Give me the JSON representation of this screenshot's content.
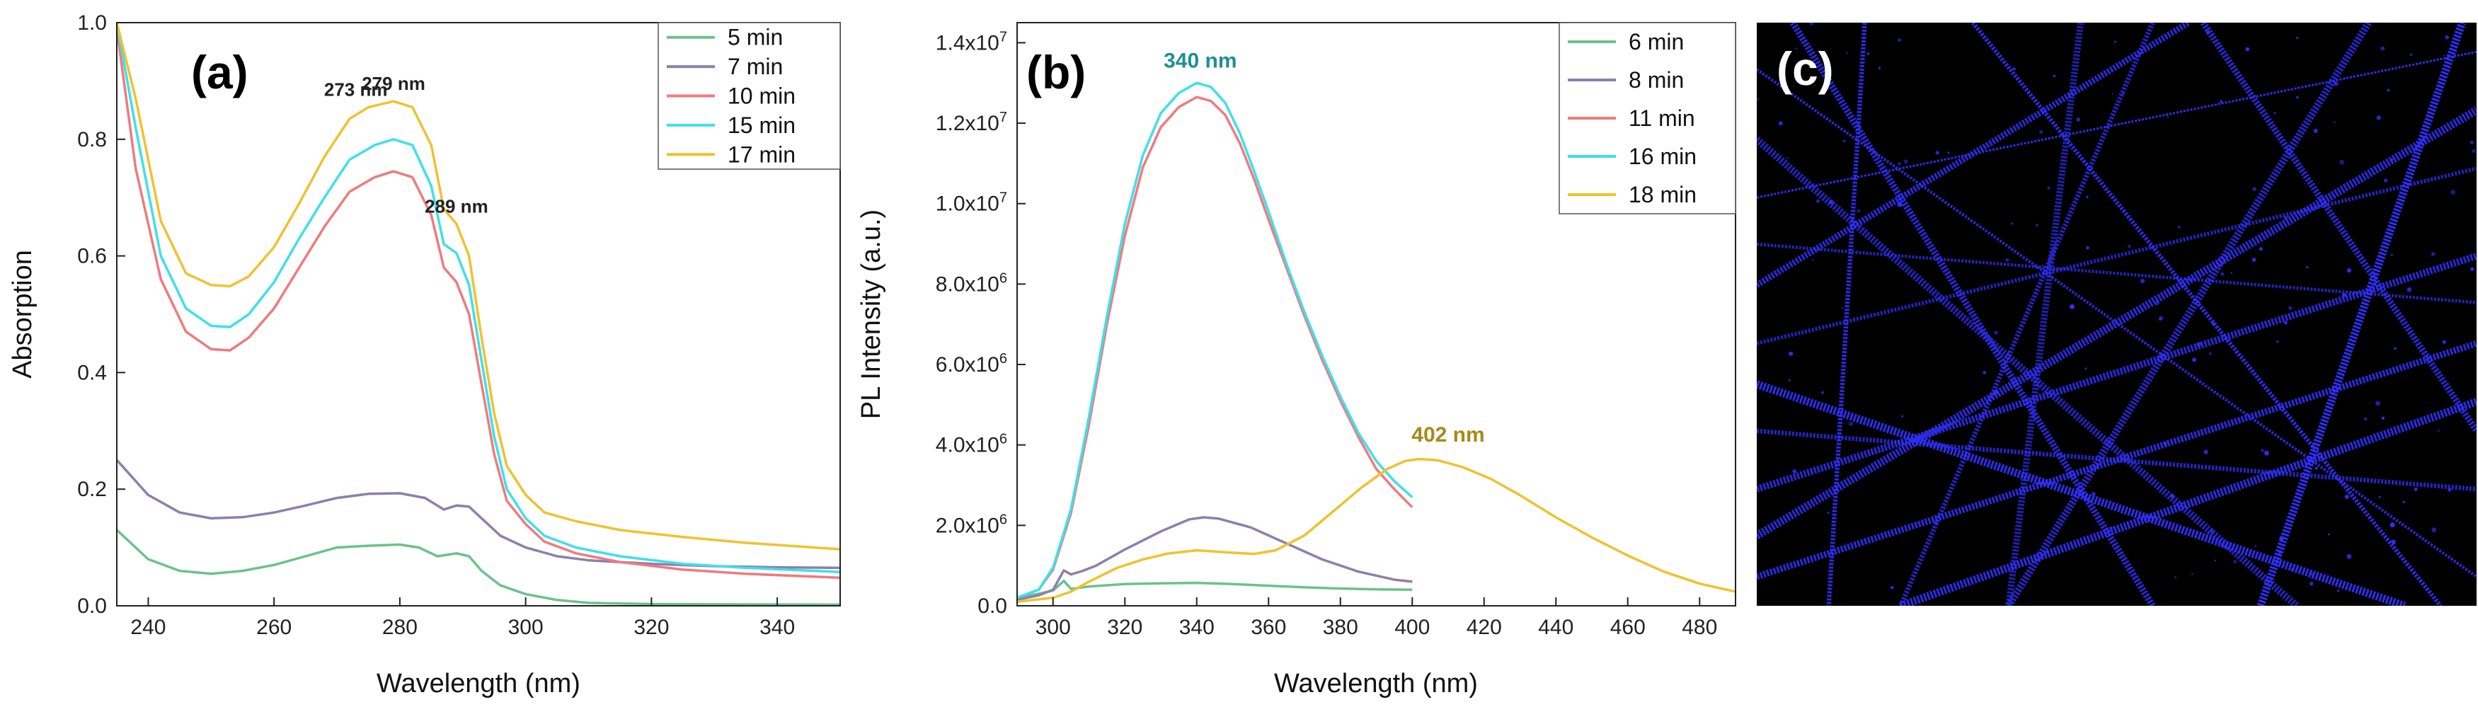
{
  "chart_data": [
    {
      "type": "line",
      "panel_label": "(a)",
      "xlabel": "Wavelength (nm)",
      "ylabel": "Absorption",
      "xlim": [
        235,
        350
      ],
      "ylim": [
        0,
        1.0
      ],
      "xticks": [
        240,
        260,
        280,
        300,
        320,
        340
      ],
      "yticks": [
        0.0,
        0.2,
        0.4,
        0.6,
        0.8,
        1.0
      ],
      "ytick_labels": [
        "0.0",
        "0.2",
        "0.4",
        "0.6",
        "0.8",
        "1.0"
      ],
      "legend_position": "top-right",
      "annotations": [
        {
          "text": "273 nm",
          "x": 273,
          "y": 0.855
        },
        {
          "text": "279 nm",
          "x": 279,
          "y": 0.865
        },
        {
          "text": "289 nm",
          "x": 289,
          "y": 0.655
        }
      ],
      "series": [
        {
          "name": "5 min",
          "color": "#6cc28a",
          "points": [
            [
              235,
              0.13
            ],
            [
              240,
              0.08
            ],
            [
              245,
              0.06
            ],
            [
              250,
              0.055
            ],
            [
              255,
              0.06
            ],
            [
              260,
              0.07
            ],
            [
              265,
              0.085
            ],
            [
              270,
              0.1
            ],
            [
              275,
              0.103
            ],
            [
              280,
              0.105
            ],
            [
              283,
              0.1
            ],
            [
              286,
              0.085
            ],
            [
              289,
              0.09
            ],
            [
              291,
              0.085
            ],
            [
              293,
              0.06
            ],
            [
              296,
              0.035
            ],
            [
              300,
              0.02
            ],
            [
              305,
              0.01
            ],
            [
              310,
              0.005
            ],
            [
              320,
              0.003
            ],
            [
              350,
              0.002
            ]
          ]
        },
        {
          "name": "7 min",
          "color": "#8d7fad",
          "points": [
            [
              235,
              0.25
            ],
            [
              240,
              0.19
            ],
            [
              245,
              0.16
            ],
            [
              250,
              0.15
            ],
            [
              255,
              0.152
            ],
            [
              260,
              0.16
            ],
            [
              265,
              0.172
            ],
            [
              270,
              0.185
            ],
            [
              275,
              0.192
            ],
            [
              280,
              0.193
            ],
            [
              284,
              0.185
            ],
            [
              287,
              0.165
            ],
            [
              289,
              0.172
            ],
            [
              291,
              0.17
            ],
            [
              293,
              0.15
            ],
            [
              296,
              0.12
            ],
            [
              300,
              0.1
            ],
            [
              305,
              0.085
            ],
            [
              310,
              0.078
            ],
            [
              320,
              0.072
            ],
            [
              330,
              0.068
            ],
            [
              340,
              0.066
            ],
            [
              350,
              0.065
            ]
          ]
        },
        {
          "name": "10 min",
          "color": "#f07a7e",
          "points": [
            [
              235,
              0.99
            ],
            [
              238,
              0.75
            ],
            [
              242,
              0.56
            ],
            [
              246,
              0.47
            ],
            [
              250,
              0.44
            ],
            [
              253,
              0.438
            ],
            [
              256,
              0.46
            ],
            [
              260,
              0.51
            ],
            [
              264,
              0.58
            ],
            [
              268,
              0.65
            ],
            [
              272,
              0.71
            ],
            [
              276,
              0.735
            ],
            [
              279,
              0.745
            ],
            [
              282,
              0.735
            ],
            [
              285,
              0.67
            ],
            [
              287,
              0.58
            ],
            [
              289,
              0.555
            ],
            [
              291,
              0.5
            ],
            [
              293,
              0.38
            ],
            [
              295,
              0.26
            ],
            [
              297,
              0.18
            ],
            [
              300,
              0.14
            ],
            [
              303,
              0.11
            ],
            [
              308,
              0.09
            ],
            [
              315,
              0.075
            ],
            [
              325,
              0.062
            ],
            [
              335,
              0.055
            ],
            [
              350,
              0.048
            ]
          ]
        },
        {
          "name": "15 min",
          "color": "#3ee0ea",
          "points": [
            [
              235,
              1.0
            ],
            [
              238,
              0.82
            ],
            [
              242,
              0.6
            ],
            [
              246,
              0.51
            ],
            [
              250,
              0.48
            ],
            [
              253,
              0.478
            ],
            [
              256,
              0.5
            ],
            [
              260,
              0.555
            ],
            [
              264,
              0.63
            ],
            [
              268,
              0.7
            ],
            [
              272,
              0.765
            ],
            [
              276,
              0.79
            ],
            [
              279,
              0.8
            ],
            [
              282,
              0.79
            ],
            [
              285,
              0.72
            ],
            [
              287,
              0.62
            ],
            [
              289,
              0.605
            ],
            [
              291,
              0.55
            ],
            [
              293,
              0.42
            ],
            [
              295,
              0.29
            ],
            [
              297,
              0.2
            ],
            [
              300,
              0.15
            ],
            [
              303,
              0.12
            ],
            [
              308,
              0.1
            ],
            [
              315,
              0.085
            ],
            [
              325,
              0.072
            ],
            [
              335,
              0.065
            ],
            [
              350,
              0.058
            ]
          ]
        },
        {
          "name": "17 min",
          "color": "#f0c22e",
          "points": [
            [
              235,
              1.0
            ],
            [
              238,
              0.87
            ],
            [
              242,
              0.66
            ],
            [
              246,
              0.57
            ],
            [
              250,
              0.55
            ],
            [
              253,
              0.548
            ],
            [
              256,
              0.565
            ],
            [
              260,
              0.615
            ],
            [
              264,
              0.69
            ],
            [
              268,
              0.77
            ],
            [
              272,
              0.835
            ],
            [
              275,
              0.855
            ],
            [
              279,
              0.865
            ],
            [
              282,
              0.855
            ],
            [
              285,
              0.79
            ],
            [
              287,
              0.68
            ],
            [
              289,
              0.655
            ],
            [
              291,
              0.6
            ],
            [
              293,
              0.46
            ],
            [
              295,
              0.33
            ],
            [
              297,
              0.24
            ],
            [
              300,
              0.19
            ],
            [
              303,
              0.16
            ],
            [
              308,
              0.145
            ],
            [
              315,
              0.13
            ],
            [
              325,
              0.118
            ],
            [
              335,
              0.108
            ],
            [
              350,
              0.097
            ]
          ]
        }
      ]
    },
    {
      "type": "line",
      "panel_label": "(b)",
      "xlabel": "Wavelength (nm)",
      "ylabel": "PL Intensity (a.u.)",
      "xlim": [
        290,
        490
      ],
      "ylim": [
        0,
        14500000
      ],
      "xticks": [
        300,
        320,
        340,
        360,
        380,
        400,
        420,
        440,
        460,
        480
      ],
      "yticks": [
        0,
        2000000,
        4000000,
        6000000,
        8000000,
        10000000,
        12000000,
        14000000
      ],
      "ytick_labels": [
        {
          "base": "0.0",
          "exp": ""
        },
        {
          "base": "2.0x10",
          "exp": "6"
        },
        {
          "base": "4.0x10",
          "exp": "6"
        },
        {
          "base": "6.0x10",
          "exp": "6"
        },
        {
          "base": "8.0x10",
          "exp": "6"
        },
        {
          "base": "1.0x10",
          "exp": "7"
        },
        {
          "base": "1.2x10",
          "exp": "7"
        },
        {
          "base": "1.4x10",
          "exp": "7"
        }
      ],
      "legend_position": "top-right",
      "annotations": [
        {
          "text": "340 nm",
          "x": 341,
          "y": 13100000,
          "color": "#1f8f95"
        },
        {
          "text": "402 nm",
          "x": 410,
          "y": 3800000,
          "color": "#a58a1c"
        }
      ],
      "series": [
        {
          "name": "6 min",
          "color": "#6cc28a",
          "points": [
            [
              290,
              200000
            ],
            [
              296,
              300000
            ],
            [
              300,
              380000
            ],
            [
              303,
              620000
            ],
            [
              305,
              420000
            ],
            [
              310,
              480000
            ],
            [
              320,
              540000
            ],
            [
              330,
              560000
            ],
            [
              340,
              570000
            ],
            [
              350,
              540000
            ],
            [
              360,
              500000
            ],
            [
              370,
              460000
            ],
            [
              380,
              430000
            ],
            [
              390,
              410000
            ],
            [
              400,
              400000
            ]
          ]
        },
        {
          "name": "8 min",
          "color": "#8d7fad",
          "points": [
            [
              290,
              150000
            ],
            [
              296,
              260000
            ],
            [
              300,
              400000
            ],
            [
              303,
              880000
            ],
            [
              305,
              780000
            ],
            [
              308,
              860000
            ],
            [
              312,
              1000000
            ],
            [
              320,
              1400000
            ],
            [
              330,
              1850000
            ],
            [
              338,
              2150000
            ],
            [
              342,
              2200000
            ],
            [
              346,
              2170000
            ],
            [
              355,
              1950000
            ],
            [
              365,
              1550000
            ],
            [
              375,
              1150000
            ],
            [
              385,
              850000
            ],
            [
              395,
              650000
            ],
            [
              400,
              600000
            ]
          ]
        },
        {
          "name": "11 min",
          "color": "#f07a7e",
          "points": [
            [
              290,
              200000
            ],
            [
              296,
              400000
            ],
            [
              300,
              900000
            ],
            [
              305,
              2300000
            ],
            [
              310,
              4500000
            ],
            [
              315,
              7000000
            ],
            [
              320,
              9200000
            ],
            [
              325,
              10900000
            ],
            [
              330,
              11900000
            ],
            [
              335,
              12400000
            ],
            [
              340,
              12650000
            ],
            [
              344,
              12550000
            ],
            [
              348,
              12200000
            ],
            [
              352,
              11500000
            ],
            [
              356,
              10600000
            ],
            [
              360,
              9600000
            ],
            [
              365,
              8400000
            ],
            [
              370,
              7200000
            ],
            [
              375,
              6100000
            ],
            [
              380,
              5100000
            ],
            [
              385,
              4200000
            ],
            [
              390,
              3400000
            ],
            [
              395,
              2900000
            ],
            [
              400,
              2450000
            ]
          ]
        },
        {
          "name": "16 min",
          "color": "#3ee0ea",
          "points": [
            [
              290,
              200000
            ],
            [
              296,
              400000
            ],
            [
              300,
              950000
            ],
            [
              305,
              2400000
            ],
            [
              310,
              4700000
            ],
            [
              315,
              7200000
            ],
            [
              320,
              9500000
            ],
            [
              325,
              11200000
            ],
            [
              330,
              12250000
            ],
            [
              335,
              12750000
            ],
            [
              340,
              13000000
            ],
            [
              344,
              12900000
            ],
            [
              348,
              12500000
            ],
            [
              352,
              11750000
            ],
            [
              356,
              10800000
            ],
            [
              360,
              9800000
            ],
            [
              365,
              8500000
            ],
            [
              370,
              7300000
            ],
            [
              375,
              6200000
            ],
            [
              380,
              5200000
            ],
            [
              385,
              4300000
            ],
            [
              390,
              3600000
            ],
            [
              395,
              3100000
            ],
            [
              400,
              2700000
            ]
          ]
        },
        {
          "name": "18 min",
          "color": "#f0c22e",
          "points": [
            [
              290,
              100000
            ],
            [
              300,
              200000
            ],
            [
              305,
              350000
            ],
            [
              310,
              600000
            ],
            [
              318,
              950000
            ],
            [
              325,
              1150000
            ],
            [
              332,
              1300000
            ],
            [
              340,
              1380000
            ],
            [
              348,
              1330000
            ],
            [
              356,
              1290000
            ],
            [
              362,
              1380000
            ],
            [
              370,
              1750000
            ],
            [
              378,
              2350000
            ],
            [
              386,
              2950000
            ],
            [
              393,
              3400000
            ],
            [
              398,
              3600000
            ],
            [
              402,
              3650000
            ],
            [
              407,
              3620000
            ],
            [
              414,
              3450000
            ],
            [
              422,
              3150000
            ],
            [
              430,
              2750000
            ],
            [
              440,
              2200000
            ],
            [
              450,
              1700000
            ],
            [
              460,
              1250000
            ],
            [
              470,
              850000
            ],
            [
              480,
              550000
            ],
            [
              490,
              350000
            ]
          ]
        }
      ]
    }
  ],
  "image_panel": {
    "panel_label": "(c)",
    "background": "#000000",
    "fiber_color": "#3030ff"
  }
}
